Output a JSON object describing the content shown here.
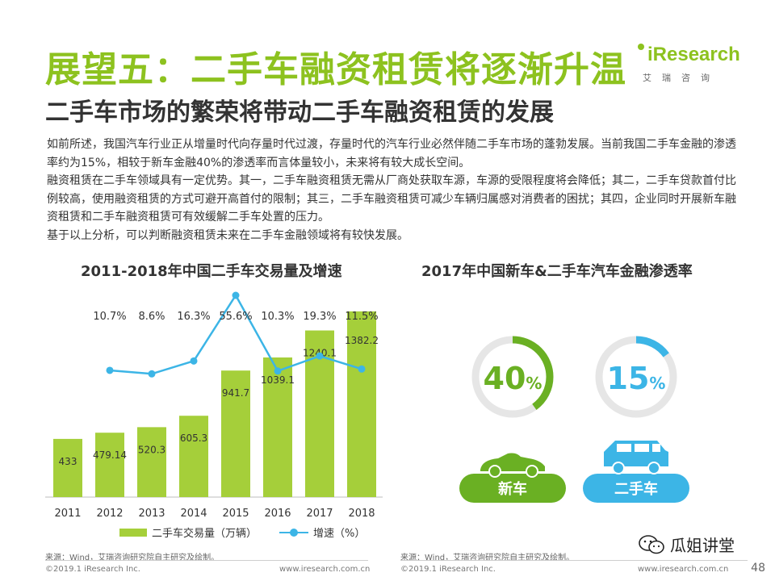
{
  "header": {
    "title": "展望五：二手车融资租赁将逐渐升温",
    "subtitle": "二手车市场的繁荣将带动二手车融资租赁的发展"
  },
  "logo": {
    "name": "iResearch",
    "cn": "艾瑞咨询"
  },
  "body": {
    "paragraphs": [
      "如前所述，我国汽车行业正从增量时代向存量时代过渡，存量时代的汽车行业必然伴随二手车市场的蓬勃发展。当前我国二手车金融的渗透率约为15%，相较于新车金融40%的渗透率而言体量较小，未来将有较大成长空间。",
      "融资租赁在二手车领域具有一定优势。其一，二手车融资租赁无需从厂商处获取车源，车源的受限程度将会降低；其二，二手车贷款首付比例较高，使用融资租赁的方式可避开高首付的限制；其三，二手车融资租赁可减少车辆归属感对消费者的困扰；其四，企业同时开展新车融资租赁和二手车融资租赁可有效缓解二手车处置的压力。",
      "基于以上分析，可以判断融资租赁未来在二手车金融领域将有较快发展。"
    ]
  },
  "chart_data": [
    {
      "type": "bar",
      "title": "2011-2018年中国二手车交易量及增速",
      "categories": [
        "2011",
        "2012",
        "2013",
        "2014",
        "2015",
        "2016",
        "2017",
        "2018"
      ],
      "series": [
        {
          "name": "二手车交易量（万辆）",
          "type": "bar",
          "values": [
            433,
            479.14,
            520.3,
            605.3,
            941.7,
            1039.1,
            1240.1,
            1382.2
          ],
          "labels": [
            "433",
            "479.14",
            "520.3",
            "605.3",
            "941.7",
            "1039.1",
            "1240.1",
            "1382.2"
          ]
        },
        {
          "name": "增速（%）",
          "type": "line",
          "values": [
            null,
            10.7,
            8.6,
            16.3,
            55.6,
            10.3,
            19.3,
            11.5
          ],
          "labels": [
            "",
            "10.7%",
            "8.6%",
            "16.3%",
            "55.6%",
            "10.3%",
            "19.3%",
            "11.5%"
          ]
        }
      ],
      "colors": {
        "bar": "#a5cf3a",
        "line": "#3cb5e6"
      }
    },
    {
      "type": "pie",
      "title": "2017年中国新车&二手车汽车金融渗透率",
      "items": [
        {
          "label": "新车",
          "value": 40,
          "display": "40",
          "unit": "%",
          "color": "#6ab023"
        },
        {
          "label": "二手车",
          "value": 15,
          "display": "15",
          "unit": "%",
          "color": "#3cb5e6"
        }
      ],
      "track_color": "#e6e6e6"
    }
  ],
  "sources": {
    "left": "来源：Wind，艾瑞咨询研究院自主研究及绘制。",
    "right": "来源：Wind，艾瑞咨询研究院自主研究及绘制。"
  },
  "footer": {
    "copyright_left": "©2019.1 iResearch Inc.",
    "url_left": "www.iresearch.com.cn",
    "copyright_right": "©2019.1 iResearch Inc.",
    "url_right": "www.iresearch.com.cn",
    "wechat": "瓜姐讲堂",
    "page": "48"
  }
}
